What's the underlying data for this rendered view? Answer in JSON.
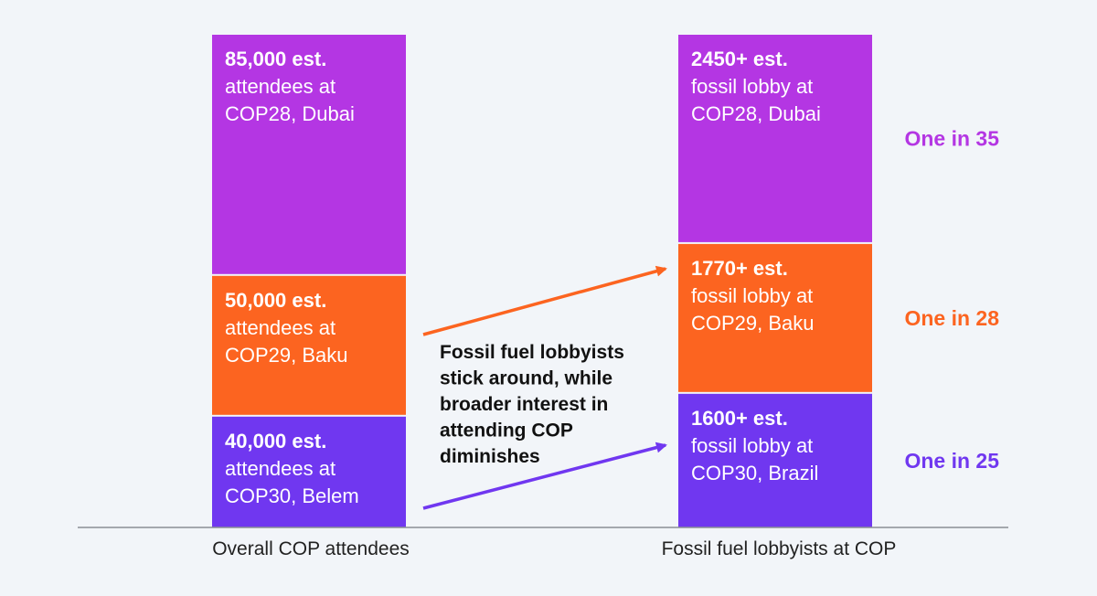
{
  "chart_data": {
    "type": "bar",
    "stacked": true,
    "categories": [
      "Overall COP attendees",
      "Fossil fuel lobbyists at COP"
    ],
    "series": [
      {
        "name": "COP30",
        "color": "#7037f0",
        "values": [
          40000,
          1600
        ],
        "labels": [
          {
            "value": "40,000 est.",
            "line1": "attendees at",
            "line2": "COP30, Belem"
          },
          {
            "value": "1600+ est.",
            "line1": "fossil lobby at",
            "line2": "COP30, Brazil"
          }
        ],
        "ratio": "One in 25"
      },
      {
        "name": "COP29",
        "color": "#fc6420",
        "values": [
          50000,
          1770
        ],
        "labels": [
          {
            "value": "50,000 est.",
            "line1": "attendees at",
            "line2": "COP29, Baku"
          },
          {
            "value": "1770+ est.",
            "line1": "fossil lobby at",
            "line2": "COP29, Baku"
          }
        ],
        "ratio": "One in 28"
      },
      {
        "name": "COP28",
        "color": "#b436e3",
        "values": [
          85000,
          2450
        ],
        "labels": [
          {
            "value": "85,000 est.",
            "line1": "attendees at",
            "line2": "COP28, Dubai"
          },
          {
            "value": "2450+ est.",
            "line1": "fossil lobby at",
            "line2": "COP28, Dubai"
          }
        ],
        "ratio": "One in 35"
      }
    ],
    "annotation": [
      "Fossil fuel lobbyists",
      "stick around, while",
      "broader interest in",
      "attending COP",
      "diminishes"
    ]
  }
}
